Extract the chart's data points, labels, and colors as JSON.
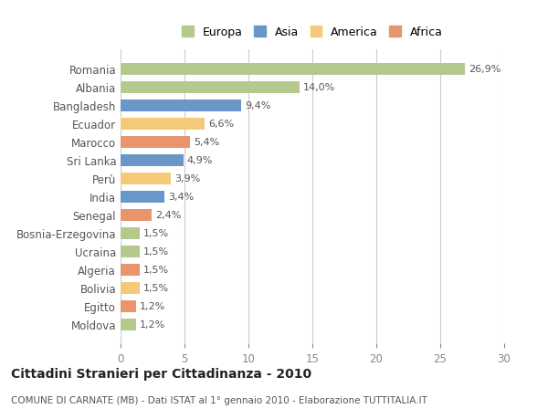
{
  "categories": [
    "Moldova",
    "Egitto",
    "Bolivia",
    "Algeria",
    "Ucraina",
    "Bosnia-Erzegovina",
    "Senegal",
    "India",
    "Perù",
    "Sri Lanka",
    "Marocco",
    "Ecuador",
    "Bangladesh",
    "Albania",
    "Romania"
  ],
  "values": [
    1.2,
    1.2,
    1.5,
    1.5,
    1.5,
    1.5,
    2.4,
    3.4,
    3.9,
    4.9,
    5.4,
    6.6,
    9.4,
    14.0,
    26.9
  ],
  "labels": [
    "1,2%",
    "1,2%",
    "1,5%",
    "1,5%",
    "1,5%",
    "1,5%",
    "2,4%",
    "3,4%",
    "3,9%",
    "4,9%",
    "5,4%",
    "6,6%",
    "9,4%",
    "14,0%",
    "26,9%"
  ],
  "colors": [
    "#b5c98e",
    "#e8956d",
    "#f5c97a",
    "#e8956d",
    "#b5c98e",
    "#b5c98e",
    "#e8956d",
    "#6b96c8",
    "#f5c97a",
    "#6b96c8",
    "#e8956d",
    "#f5c97a",
    "#6b96c8",
    "#b5c98e",
    "#b5c98e"
  ],
  "continent_colors": {
    "Europa": "#b5c98e",
    "Asia": "#6b96c8",
    "America": "#f5c97a",
    "Africa": "#e8956d"
  },
  "legend_labels": [
    "Europa",
    "Asia",
    "America",
    "Africa"
  ],
  "title": "Cittadini Stranieri per Cittadinanza - 2010",
  "subtitle": "COMUNE DI CARNATE (MB) - Dati ISTAT al 1° gennaio 2010 - Elaborazione TUTTITALIA.IT",
  "xlim": [
    0,
    30
  ],
  "xticks": [
    0,
    5,
    10,
    15,
    20,
    25,
    30
  ],
  "bg_color": "#ffffff",
  "grid_color": "#cccccc",
  "bar_height": 0.65
}
